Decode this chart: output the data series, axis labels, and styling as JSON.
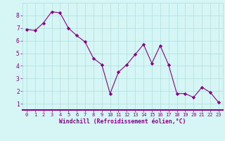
{
  "x": [
    0,
    1,
    2,
    3,
    4,
    5,
    6,
    7,
    8,
    9,
    10,
    11,
    12,
    13,
    14,
    15,
    16,
    17,
    18,
    19,
    20,
    21,
    22,
    23
  ],
  "y": [
    6.9,
    6.8,
    7.4,
    8.3,
    8.2,
    7.0,
    6.4,
    5.9,
    4.6,
    4.1,
    1.8,
    3.5,
    4.1,
    4.9,
    5.7,
    4.2,
    5.6,
    4.1,
    1.8,
    1.8,
    1.5,
    2.3,
    1.9,
    1.1
  ],
  "line_color": "#880088",
  "marker": "D",
  "marker_size": 2.2,
  "bg_color": "#d6f5f5",
  "grid_color": "#b0dede",
  "xlabel": "Windchill (Refroidissement éolien,°C)",
  "xlabel_color": "#880088",
  "tick_color": "#880088",
  "spine_color": "#880088",
  "ylim": [
    0.5,
    9.0
  ],
  "xlim": [
    -0.5,
    23.5
  ],
  "yticks": [
    1,
    2,
    3,
    4,
    5,
    6,
    7,
    8
  ],
  "xticks": [
    0,
    1,
    2,
    3,
    4,
    5,
    6,
    7,
    8,
    9,
    10,
    11,
    12,
    13,
    14,
    15,
    16,
    17,
    18,
    19,
    20,
    21,
    22,
    23
  ],
  "xlabel_fontsize": 5.8,
  "tick_fontsize_x": 5.0,
  "tick_fontsize_y": 5.8
}
